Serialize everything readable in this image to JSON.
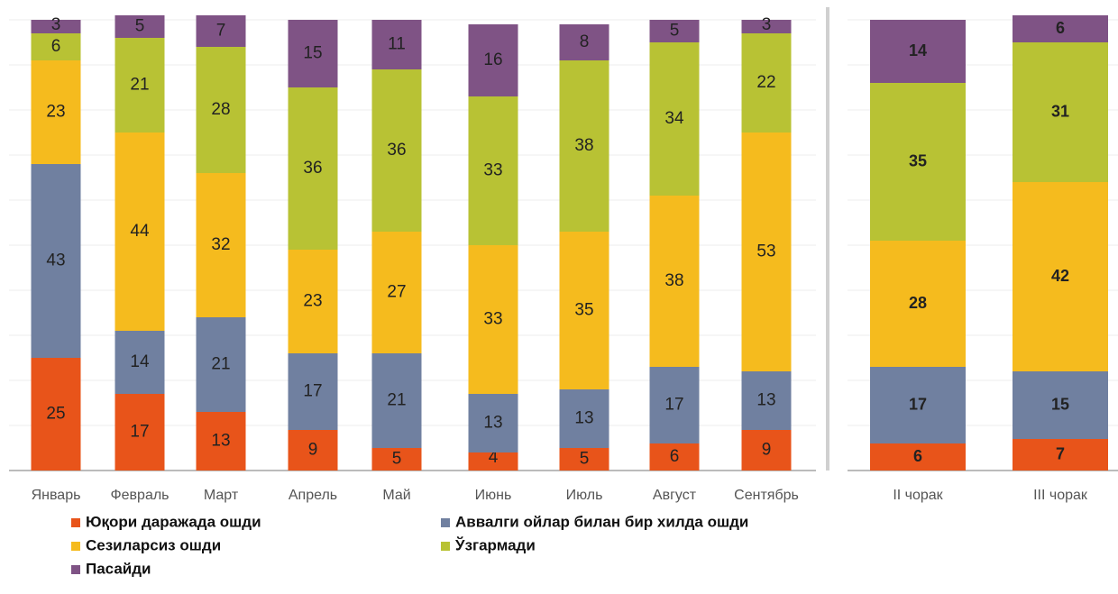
{
  "chart_data": [
    {
      "type": "bar",
      "stacked": true,
      "categories": [
        "Январь",
        "Февраль",
        "Март",
        "Апрель",
        "Май",
        "Июнь",
        "Июль",
        "Август",
        "Сентябрь"
      ],
      "ylim": [
        0,
        100
      ],
      "yticks": [
        0,
        10,
        20,
        30,
        40,
        50,
        60,
        70,
        80,
        90,
        100
      ],
      "grid": true,
      "series": [
        {
          "name": "Юқори даражада ошди",
          "color": "#e8541a",
          "values": [
            25,
            17,
            13,
            9,
            5,
            4,
            5,
            6,
            9
          ]
        },
        {
          "name": "Аввалги ойлар билан бир хилда ошди",
          "color": "#7080a0",
          "values": [
            43,
            14,
            21,
            17,
            21,
            13,
            13,
            17,
            13
          ]
        },
        {
          "name": "Сезиларсиз ошди",
          "color": "#f5bb1e",
          "values": [
            23,
            44,
            32,
            23,
            27,
            33,
            35,
            38,
            53
          ]
        },
        {
          "name": "Ўзгармади",
          "color": "#b8c234",
          "values": [
            6,
            21,
            28,
            36,
            36,
            33,
            38,
            34,
            22
          ]
        },
        {
          "name": "Пасайди",
          "color": "#7f5385",
          "values": [
            3,
            5,
            7,
            15,
            11,
            16,
            8,
            5,
            3
          ]
        }
      ]
    },
    {
      "type": "bar",
      "stacked": true,
      "categories": [
        "II чорак",
        "III чорак"
      ],
      "ylim": [
        0,
        100
      ],
      "yticks": [
        0,
        10,
        20,
        30,
        40,
        50,
        60,
        70,
        80,
        90,
        100
      ],
      "grid": true,
      "series": [
        {
          "color": "#e8541a",
          "values": [
            6,
            7
          ]
        },
        {
          "color": "#7080a0",
          "values": [
            17,
            15
          ]
        },
        {
          "color": "#f5bb1e",
          "values": [
            28,
            42
          ]
        },
        {
          "color": "#b8c234",
          "values": [
            35,
            31
          ]
        },
        {
          "color": "#7f5385",
          "values": [
            14,
            6
          ]
        }
      ]
    }
  ]
}
